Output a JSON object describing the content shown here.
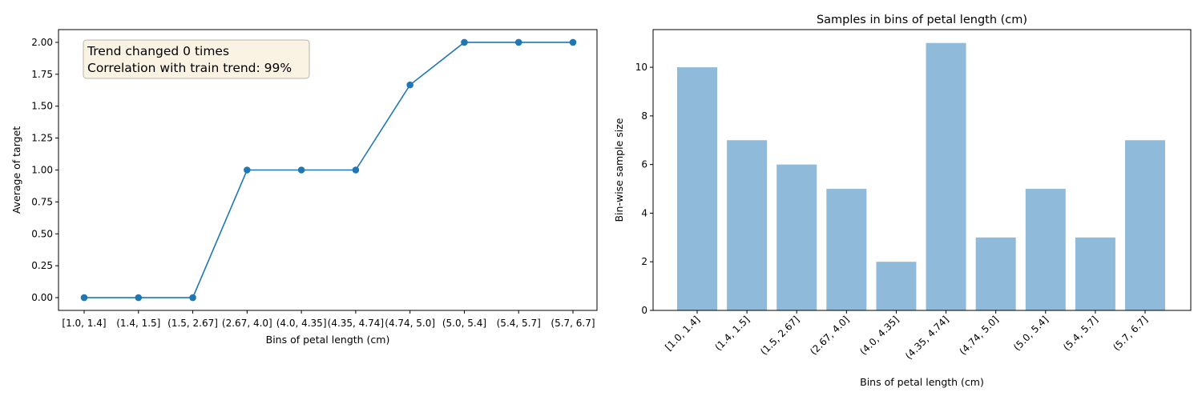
{
  "chart_data": [
    {
      "type": "line",
      "xlabel": "Bins of petal length (cm)",
      "ylabel": "Average of target",
      "categories": [
        "[1.0,  1.4]",
        "(1.4, 1.5]",
        "(1.5, 2.67]",
        "(2.67, 4.0]",
        "(4.0, 4.35]",
        "(4.35, 4.74]",
        "(4.74, 5.0]",
        "(5.0, 5.4]",
        "(5.4, 5.7]",
        "(5.7, 6.7]"
      ],
      "values": [
        0,
        0,
        0,
        1,
        1,
        1,
        1.6667,
        2,
        2,
        2
      ],
      "ylim": [
        -0.1,
        2.1
      ],
      "yticks": [
        "0.00",
        "0.25",
        "0.50",
        "0.75",
        "1.00",
        "1.25",
        "1.50",
        "1.75",
        "2.00"
      ],
      "color": "#1f77b4",
      "annotation": [
        "Trend changed 0 times",
        "Correlation with train trend: 99%"
      ],
      "annotation_bg": "#faf3e3",
      "grid": false
    },
    {
      "type": "bar",
      "title": "Samples in bins of petal length (cm)",
      "xlabel": "Bins of petal length (cm)",
      "ylabel": "Bin-wise sample size",
      "categories": [
        "[1.0,  1.4]",
        "(1.4, 1.5]",
        "(1.5, 2.67]",
        "(2.67, 4.0]",
        "(4.0, 4.35]",
        "(4.35, 4.74]",
        "(4.74, 5.0]",
        "(5.0, 5.4]",
        "(5.4, 5.7]",
        "(5.7, 6.7]"
      ],
      "values": [
        10,
        7,
        6,
        5,
        2,
        11,
        3,
        5,
        3,
        7
      ],
      "ylim": [
        0,
        11.55
      ],
      "yticks": [
        "0",
        "2",
        "4",
        "6",
        "8",
        "10"
      ],
      "color": "#8fbad9",
      "xtick_rotation": 45,
      "grid": false
    }
  ]
}
